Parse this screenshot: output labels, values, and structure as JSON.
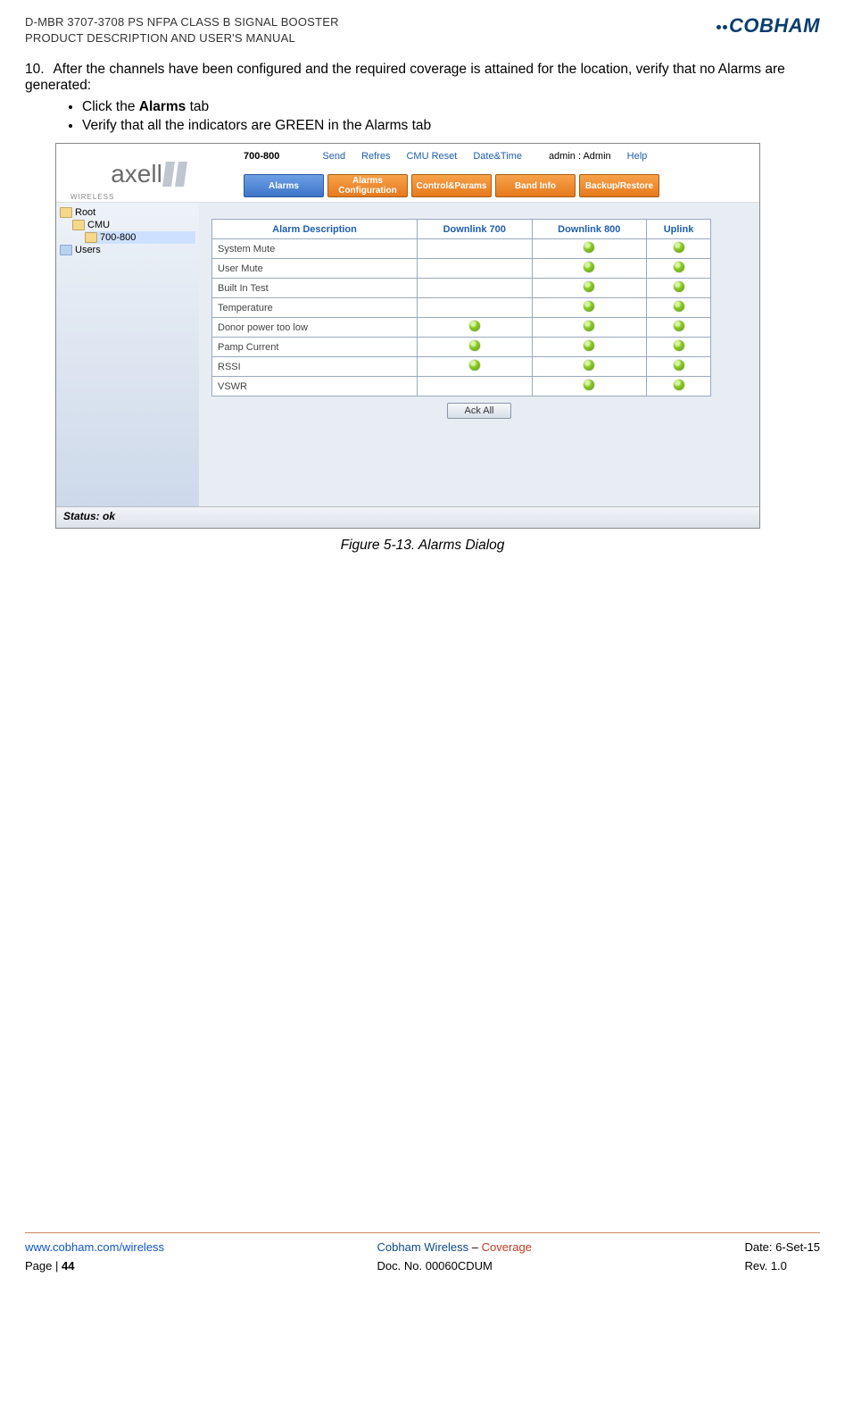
{
  "header": {
    "line1": "D-MBR 3707-3708 PS NFPA CLASS B SIGNAL BOOSTER",
    "line2": "PRODUCT DESCRIPTION AND USER'S MANUAL",
    "brand": "COBHAM"
  },
  "step": {
    "number": "10.",
    "text_a": "After the channels have been configured and the required coverage is attained for the location, verify that no Alarms are generated:",
    "bullet1_pre": "Click the ",
    "bullet1_bold": "Alarms",
    "bullet1_post": " tab",
    "bullet2": "Verify that all the indicators are GREEN in the Alarms tab"
  },
  "screenshot": {
    "unit": "700-800",
    "menu": {
      "send": "Send",
      "refresh": "Refres",
      "cmu_reset": "CMU Reset",
      "datetime": "Date&Time",
      "user": "admin : Admin",
      "help": "Help"
    },
    "tabs": {
      "alarms": "Alarms",
      "config": "Alarms Configuration",
      "control": "Control&Params",
      "band": "Band Info",
      "backup": "Backup/Restore"
    },
    "tree": {
      "root": "Root",
      "cmu": "CMU",
      "band": "700-800",
      "users": "Users"
    },
    "table": {
      "headers": {
        "desc": "Alarm Description",
        "dl700": "Downlink 700",
        "dl800": "Downlink 800",
        "uplink": "Uplink"
      },
      "rows": [
        {
          "desc": "System Mute",
          "v": [
            false,
            true,
            false,
            true
          ]
        },
        {
          "desc": "User Mute",
          "v": [
            false,
            true,
            false,
            true
          ]
        },
        {
          "desc": "Built In Test",
          "v": [
            false,
            true,
            false,
            true
          ]
        },
        {
          "desc": "Temperature",
          "v": [
            false,
            true,
            false,
            true
          ]
        },
        {
          "desc": "Donor power too low",
          "v": [
            true,
            true,
            false,
            true
          ]
        },
        {
          "desc": "Pamp Current",
          "v": [
            true,
            true,
            false,
            true
          ]
        },
        {
          "desc": "RSSI",
          "v": [
            true,
            true,
            false,
            true
          ]
        },
        {
          "desc": "VSWR",
          "v": [
            false,
            true,
            false,
            true
          ]
        }
      ]
    },
    "ack": "Ack All",
    "status": "Status: ok",
    "logo": {
      "text": "axell",
      "sub": "WIRELESS"
    }
  },
  "caption": "Figure 5-13. Alarms Dialog",
  "footer": {
    "link": "www.cobham.com/wireless",
    "page_label": "Page | ",
    "page_num": "44",
    "brand": "Cobham Wireless",
    "sep": " – ",
    "coverage": "Coverage",
    "doc": "Doc. No. 00060CDUM",
    "date": "Date: 6-Set-15",
    "rev": "Rev. 1.0"
  }
}
